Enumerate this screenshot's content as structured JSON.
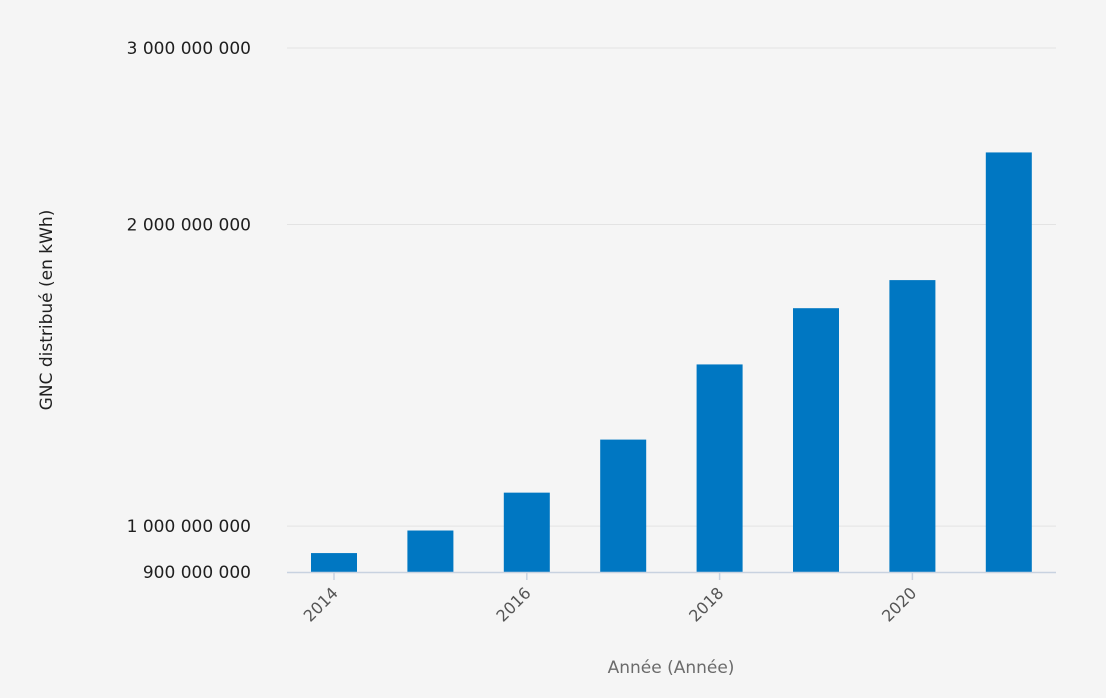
{
  "chart_data": {
    "type": "bar",
    "title": "",
    "xlabel": "Année (Année)",
    "ylabel": "GNC distribué (en kWh)",
    "x": [
      2014,
      2015,
      2016,
      2017,
      2018,
      2019,
      2020,
      2021
    ],
    "values": [
      940000000,
      990000000,
      1080000000,
      1220000000,
      1450000000,
      1650000000,
      1760000000,
      2360000000
    ],
    "ylim": [
      900000000,
      3000000000
    ],
    "y_ticks": [
      {
        "value": 900000000,
        "label": "900 000 000"
      },
      {
        "value": 1000000000,
        "label": "1 000 000 000"
      },
      {
        "value": 2000000000,
        "label": "2 000 000 000"
      },
      {
        "value": 3000000000,
        "label": "3 000 000 000"
      }
    ],
    "x_ticks": [
      {
        "value": 2014,
        "label": "2014"
      },
      {
        "value": 2016,
        "label": "2016"
      },
      {
        "value": 2018,
        "label": "2018"
      },
      {
        "value": 2020,
        "label": "2020"
      }
    ],
    "y_scale": "log",
    "grid": true,
    "legend": "none",
    "colors": {
      "bar": "#0077c2",
      "grid": "#e3e3e3",
      "axis": "#c8d2e0",
      "background": "#f5f5f5"
    }
  }
}
